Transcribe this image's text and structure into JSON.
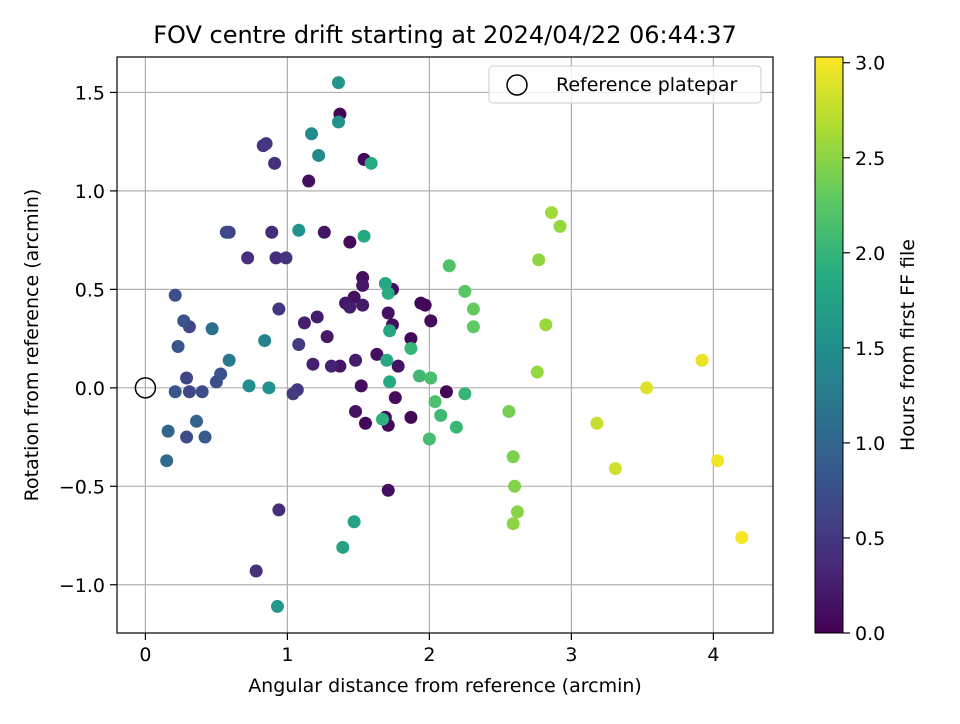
{
  "chart_data": {
    "type": "scatter",
    "title": "FOV centre drift starting at 2024/04/22 06:44:37",
    "xlabel": "Angular distance from reference (arcmin)",
    "ylabel": "Rotation from reference (arcmin)",
    "xlim": [
      -0.2,
      4.42
    ],
    "ylim": [
      -1.245,
      1.68
    ],
    "x_ticks": [
      0,
      1,
      2,
      3,
      4
    ],
    "y_ticks": [
      -1.0,
      -0.5,
      0.0,
      0.5,
      1.0,
      1.5
    ],
    "x_tick_labels": [
      "0",
      "1",
      "2",
      "3",
      "4"
    ],
    "y_tick_labels": [
      "−1.0",
      "−0.5",
      "0.0",
      "0.5",
      "1.0",
      "1.5"
    ],
    "grid": true,
    "legend": {
      "placement": "upper right",
      "entries": [
        "Reference platepar"
      ]
    },
    "reference_point": {
      "x": 0,
      "y": 0
    },
    "colorbar": {
      "label": "Hours from first FF file",
      "colormap": "viridis",
      "range": [
        0.0,
        3.03
      ],
      "ticks": [
        0.0,
        0.5,
        1.0,
        1.5,
        2.0,
        2.5,
        3.0
      ],
      "tick_labels": [
        "0.0",
        "0.5",
        "1.0",
        "1.5",
        "2.0",
        "2.5",
        "3.0"
      ]
    },
    "points": [
      {
        "x": 1.37,
        "y": 1.39,
        "c": 0.03
      },
      {
        "x": 1.54,
        "y": 1.16,
        "c": 0.06
      },
      {
        "x": 1.15,
        "y": 1.05,
        "c": 0.12
      },
      {
        "x": 1.44,
        "y": 0.74,
        "c": 0.09
      },
      {
        "x": 1.26,
        "y": 0.79,
        "c": 0.18
      },
      {
        "x": 1.53,
        "y": 0.56,
        "c": 0.12
      },
      {
        "x": 1.53,
        "y": 0.52,
        "c": 0.18
      },
      {
        "x": 1.74,
        "y": 0.5,
        "c": 0.09
      },
      {
        "x": 1.47,
        "y": 0.46,
        "c": 0.12
      },
      {
        "x": 1.41,
        "y": 0.43,
        "c": 0.18
      },
      {
        "x": 1.44,
        "y": 0.41,
        "c": 0.24
      },
      {
        "x": 1.53,
        "y": 0.42,
        "c": 0.21
      },
      {
        "x": 1.71,
        "y": 0.38,
        "c": 0.15
      },
      {
        "x": 1.74,
        "y": 0.32,
        "c": 0.12
      },
      {
        "x": 1.94,
        "y": 0.43,
        "c": 0.06
      },
      {
        "x": 1.97,
        "y": 0.42,
        "c": 0.03
      },
      {
        "x": 2.01,
        "y": 0.34,
        "c": 0.09
      },
      {
        "x": 1.87,
        "y": 0.25,
        "c": 0.06
      },
      {
        "x": 1.63,
        "y": 0.17,
        "c": 0.12
      },
      {
        "x": 1.78,
        "y": 0.11,
        "c": 0.15
      },
      {
        "x": 1.37,
        "y": 0.11,
        "c": 0.18
      },
      {
        "x": 1.52,
        "y": 0.01,
        "c": 0.12
      },
      {
        "x": 1.76,
        "y": -0.05,
        "c": 0.09
      },
      {
        "x": 1.48,
        "y": -0.12,
        "c": 0.15
      },
      {
        "x": 1.55,
        "y": -0.18,
        "c": 0.06
      },
      {
        "x": 1.69,
        "y": -0.15,
        "c": 0.09
      },
      {
        "x": 1.71,
        "y": -0.19,
        "c": 0.03
      },
      {
        "x": 1.87,
        "y": -0.15,
        "c": 0.06
      },
      {
        "x": 2.12,
        "y": -0.02,
        "c": 0.03
      },
      {
        "x": 1.71,
        "y": -0.52,
        "c": 0.12
      },
      {
        "x": 1.12,
        "y": 0.33,
        "c": 0.27
      },
      {
        "x": 1.21,
        "y": 0.36,
        "c": 0.24
      },
      {
        "x": 1.28,
        "y": 0.26,
        "c": 0.21
      },
      {
        "x": 1.18,
        "y": 0.12,
        "c": 0.27
      },
      {
        "x": 1.31,
        "y": 0.11,
        "c": 0.3
      },
      {
        "x": 1.48,
        "y": 0.14,
        "c": 0.24
      },
      {
        "x": 0.83,
        "y": 1.23,
        "c": 0.45
      },
      {
        "x": 0.85,
        "y": 1.24,
        "c": 0.48
      },
      {
        "x": 0.91,
        "y": 1.14,
        "c": 0.42
      },
      {
        "x": 0.89,
        "y": 0.79,
        "c": 0.36
      },
      {
        "x": 0.72,
        "y": 0.66,
        "c": 0.42
      },
      {
        "x": 0.92,
        "y": 0.66,
        "c": 0.39
      },
      {
        "x": 0.99,
        "y": 0.66,
        "c": 0.45
      },
      {
        "x": 0.94,
        "y": 0.4,
        "c": 0.48
      },
      {
        "x": 1.08,
        "y": 0.22,
        "c": 0.54
      },
      {
        "x": 1.07,
        "y": -0.01,
        "c": 0.48
      },
      {
        "x": 1.04,
        "y": -0.03,
        "c": 0.54
      },
      {
        "x": 0.94,
        "y": -0.62,
        "c": 0.39
      },
      {
        "x": 0.78,
        "y": -0.93,
        "c": 0.45
      },
      {
        "x": 0.57,
        "y": 0.79,
        "c": 0.66
      },
      {
        "x": 0.59,
        "y": 0.79,
        "c": 0.6
      },
      {
        "x": 0.21,
        "y": 0.47,
        "c": 0.72
      },
      {
        "x": 0.27,
        "y": 0.34,
        "c": 0.78
      },
      {
        "x": 0.31,
        "y": 0.31,
        "c": 0.66
      },
      {
        "x": 0.23,
        "y": 0.21,
        "c": 0.81
      },
      {
        "x": 0.29,
        "y": 0.05,
        "c": 0.63
      },
      {
        "x": 0.31,
        "y": -0.02,
        "c": 0.66
      },
      {
        "x": 0.4,
        "y": -0.02,
        "c": 0.72
      },
      {
        "x": 0.21,
        "y": -0.02,
        "c": 0.84
      },
      {
        "x": 0.5,
        "y": 0.03,
        "c": 0.75
      },
      {
        "x": 0.53,
        "y": 0.07,
        "c": 0.78
      },
      {
        "x": 0.29,
        "y": -0.25,
        "c": 0.72
      },
      {
        "x": 0.42,
        "y": -0.25,
        "c": 0.87
      },
      {
        "x": 0.36,
        "y": -0.17,
        "c": 0.96
      },
      {
        "x": 0.16,
        "y": -0.22,
        "c": 0.99
      },
      {
        "x": 0.15,
        "y": -0.37,
        "c": 1.05
      },
      {
        "x": 0.47,
        "y": 0.3,
        "c": 1.11
      },
      {
        "x": 0.59,
        "y": 0.14,
        "c": 1.23
      },
      {
        "x": 0.84,
        "y": 0.24,
        "c": 1.35
      },
      {
        "x": 0.73,
        "y": 0.01,
        "c": 1.5
      },
      {
        "x": 0.87,
        "y": 0.0,
        "c": 1.53
      },
      {
        "x": 1.17,
        "y": 1.29,
        "c": 1.47
      },
      {
        "x": 1.22,
        "y": 1.18,
        "c": 1.44
      },
      {
        "x": 1.36,
        "y": 1.35,
        "c": 1.53
      },
      {
        "x": 1.36,
        "y": 1.55,
        "c": 1.59
      },
      {
        "x": 1.08,
        "y": 0.8,
        "c": 1.56
      },
      {
        "x": 0.93,
        "y": -1.11,
        "c": 1.62
      },
      {
        "x": 1.39,
        "y": -0.81,
        "c": 1.77
      },
      {
        "x": 1.47,
        "y": -0.68,
        "c": 1.74
      },
      {
        "x": 1.54,
        "y": 0.77,
        "c": 1.83
      },
      {
        "x": 1.59,
        "y": 1.14,
        "c": 1.86
      },
      {
        "x": 1.69,
        "y": 0.53,
        "c": 1.8
      },
      {
        "x": 1.71,
        "y": 0.48,
        "c": 1.89
      },
      {
        "x": 1.72,
        "y": 0.29,
        "c": 1.8
      },
      {
        "x": 1.7,
        "y": 0.14,
        "c": 1.83
      },
      {
        "x": 1.72,
        "y": 0.03,
        "c": 1.86
      },
      {
        "x": 1.67,
        "y": -0.16,
        "c": 1.95
      },
      {
        "x": 1.87,
        "y": 0.2,
        "c": 2.01
      },
      {
        "x": 1.93,
        "y": 0.06,
        "c": 2.07
      },
      {
        "x": 2.01,
        "y": 0.05,
        "c": 2.13
      },
      {
        "x": 2.04,
        "y": -0.07,
        "c": 2.16
      },
      {
        "x": 2.08,
        "y": -0.14,
        "c": 2.07
      },
      {
        "x": 2.0,
        "y": -0.26,
        "c": 2.1
      },
      {
        "x": 2.19,
        "y": -0.2,
        "c": 2.04
      },
      {
        "x": 2.25,
        "y": -0.03,
        "c": 2.01
      },
      {
        "x": 2.14,
        "y": 0.62,
        "c": 2.19
      },
      {
        "x": 2.25,
        "y": 0.49,
        "c": 2.25
      },
      {
        "x": 2.31,
        "y": 0.4,
        "c": 2.31
      },
      {
        "x": 2.31,
        "y": 0.31,
        "c": 2.28
      },
      {
        "x": 2.56,
        "y": -0.12,
        "c": 2.4
      },
      {
        "x": 2.59,
        "y": -0.35,
        "c": 2.43
      },
      {
        "x": 2.6,
        "y": -0.5,
        "c": 2.46
      },
      {
        "x": 2.62,
        "y": -0.63,
        "c": 2.49
      },
      {
        "x": 2.59,
        "y": -0.69,
        "c": 2.52
      },
      {
        "x": 2.77,
        "y": 0.65,
        "c": 2.52
      },
      {
        "x": 2.76,
        "y": 0.08,
        "c": 2.55
      },
      {
        "x": 2.82,
        "y": 0.32,
        "c": 2.58
      },
      {
        "x": 2.86,
        "y": 0.89,
        "c": 2.61
      },
      {
        "x": 2.92,
        "y": 0.82,
        "c": 2.55
      },
      {
        "x": 3.18,
        "y": -0.18,
        "c": 2.79
      },
      {
        "x": 3.31,
        "y": -0.41,
        "c": 2.82
      },
      {
        "x": 3.53,
        "y": 0.0,
        "c": 2.88
      },
      {
        "x": 3.92,
        "y": 0.14,
        "c": 2.94
      },
      {
        "x": 4.03,
        "y": -0.37,
        "c": 2.97
      },
      {
        "x": 4.2,
        "y": -0.76,
        "c": 3.0
      }
    ]
  }
}
